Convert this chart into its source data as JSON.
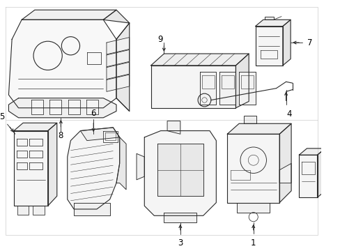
{
  "background_color": "#ffffff",
  "line_color": "#2a2a2a",
  "text_color": "#000000",
  "label_fontsize": 8.5,
  "fig_width": 4.89,
  "fig_height": 3.6,
  "dpi": 100
}
